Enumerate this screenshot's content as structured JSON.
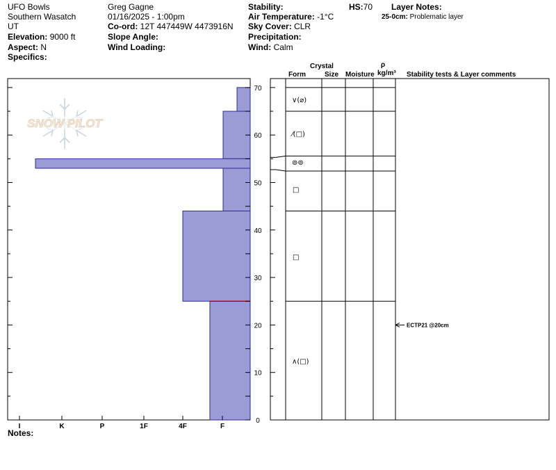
{
  "header": {
    "location": "UFO Bowls",
    "range": "Southern Wasatch",
    "state": "UT",
    "elevation_label": "Elevation:",
    "elevation": "9000 ft",
    "aspect_label": "Aspect:",
    "aspect": "N",
    "specifics_label": "Specifics:",
    "observer": "Greg Gagne",
    "datetime": "01/16/2025 - 1:00pm",
    "coord_label": "Co-ord:",
    "coord": "12T 447449W 4473916N",
    "slope_label": "Slope Angle:",
    "wind_loading_label": "Wind Loading:",
    "stability_label": "Stability:",
    "air_temp_label": "Air Temperature:",
    "air_temp": "-1°C",
    "sky_label": "Sky Cover:",
    "sky": "CLR",
    "precip_label": "Precipitation:",
    "wind_label": "Wind:",
    "wind": "Calm",
    "hs_label": "HS:",
    "hs": "70",
    "layer_notes_label": "Layer Notes:",
    "layer_note_range": "25-0cm:",
    "layer_note_text": "Problematic layer"
  },
  "columns": {
    "crystal": "Crystal",
    "form": "Form",
    "size": "Size",
    "moisture": "Moisture",
    "rho": "ρ",
    "density_unit": "kg/m³",
    "stability": "Stability tests & Layer comments"
  },
  "watermark": "SNOW PILOT",
  "notes_label": "Notes:",
  "chart_data": {
    "type": "bar",
    "description_units": "height cm vs hand hardness",
    "hardness_scale": [
      "I",
      "K",
      "P",
      "1F",
      "4F",
      "F"
    ],
    "y_ticks": [
      0,
      10,
      20,
      30,
      40,
      50,
      60,
      70
    ],
    "ylim": [
      0,
      70
    ],
    "layers": [
      {
        "bottom": 65,
        "top": 70,
        "hardness": "F+",
        "form": "∨(⌀)"
      },
      {
        "bottom": 55,
        "top": 65,
        "hardness": "F",
        "form": "⁄(□)"
      },
      {
        "bottom": 53,
        "top": 55,
        "hardness": "I+",
        "form": "⊚⊚"
      },
      {
        "bottom": 44,
        "top": 53,
        "hardness": "F",
        "form": "□"
      },
      {
        "bottom": 25,
        "top": 44,
        "hardness": "4F",
        "form": "□"
      },
      {
        "bottom": 0,
        "top": 25,
        "hardness": "F-",
        "form": "∧(□)"
      }
    ],
    "layer_boundaries": [
      0,
      25,
      44,
      53,
      55,
      65,
      70
    ],
    "tests": [
      {
        "depth": 20,
        "label": "ECTP21 @20cm"
      }
    ],
    "highlight_line": 25
  }
}
